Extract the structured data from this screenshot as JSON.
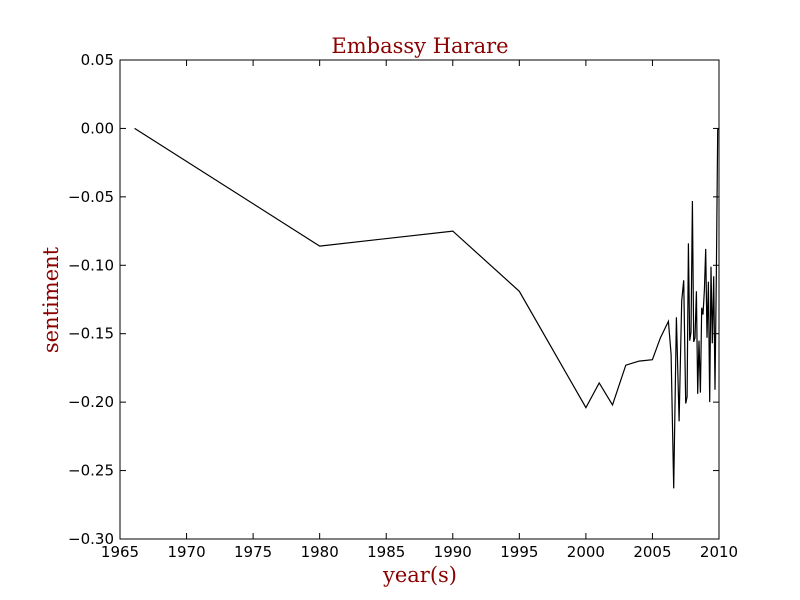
{
  "colors": {
    "text_accent": "#8b0000",
    "line": "#000000",
    "background": "#ffffff"
  },
  "chart_data": {
    "type": "line",
    "title": "Embassy Harare",
    "xlabel": "year(s)",
    "ylabel": "sentiment",
    "xlim": [
      1965,
      2010
    ],
    "ylim": [
      -0.3,
      0.05
    ],
    "grid": false,
    "x_ticks": [
      1965,
      1970,
      1975,
      1980,
      1985,
      1990,
      1995,
      2000,
      2005,
      2010
    ],
    "x_tick_labels": [
      "1965",
      "1970",
      "1975",
      "1980",
      "1985",
      "1990",
      "1995",
      "2000",
      "2005",
      "2010"
    ],
    "y_ticks": [
      0.05,
      0.0,
      -0.05,
      -0.1,
      -0.15,
      -0.2,
      -0.25,
      -0.3
    ],
    "y_tick_labels": [
      "0.05",
      "0.00",
      "−0.05",
      "−0.10",
      "−0.15",
      "−0.20",
      "−0.25",
      "−0.30"
    ],
    "series": [
      {
        "x": [
          1966.1,
          1980.0,
          1990.0,
          1995.0,
          2000.0,
          2001.0,
          2002.0,
          2003.0,
          2004.0,
          2005.0,
          2005.6,
          2006.2,
          2006.4,
          2006.6,
          2006.8,
          2007.0,
          2007.2,
          2007.35,
          2007.5,
          2007.6,
          2007.7,
          2007.8,
          2007.9,
          2008.0,
          2008.1,
          2008.2,
          2008.3,
          2008.4,
          2008.5,
          2008.6,
          2008.7,
          2008.8,
          2008.9,
          2009.0,
          2009.1,
          2009.2,
          2009.3,
          2009.4,
          2009.5,
          2009.6,
          2009.7,
          2009.8,
          2009.9,
          2010.0
        ],
        "y": [
          0.0,
          -0.086,
          -0.075,
          -0.119,
          -0.204,
          -0.186,
          -0.202,
          -0.173,
          -0.17,
          -0.169,
          -0.153,
          -0.141,
          -0.165,
          -0.263,
          -0.138,
          -0.214,
          -0.126,
          -0.111,
          -0.201,
          -0.196,
          -0.084,
          -0.155,
          -0.149,
          -0.053,
          -0.156,
          -0.153,
          -0.119,
          -0.194,
          -0.155,
          -0.193,
          -0.131,
          -0.136,
          -0.118,
          -0.088,
          -0.153,
          -0.112,
          -0.2,
          -0.101,
          -0.157,
          -0.108,
          -0.191,
          -0.11,
          -0.001,
          0.0
        ]
      }
    ]
  }
}
